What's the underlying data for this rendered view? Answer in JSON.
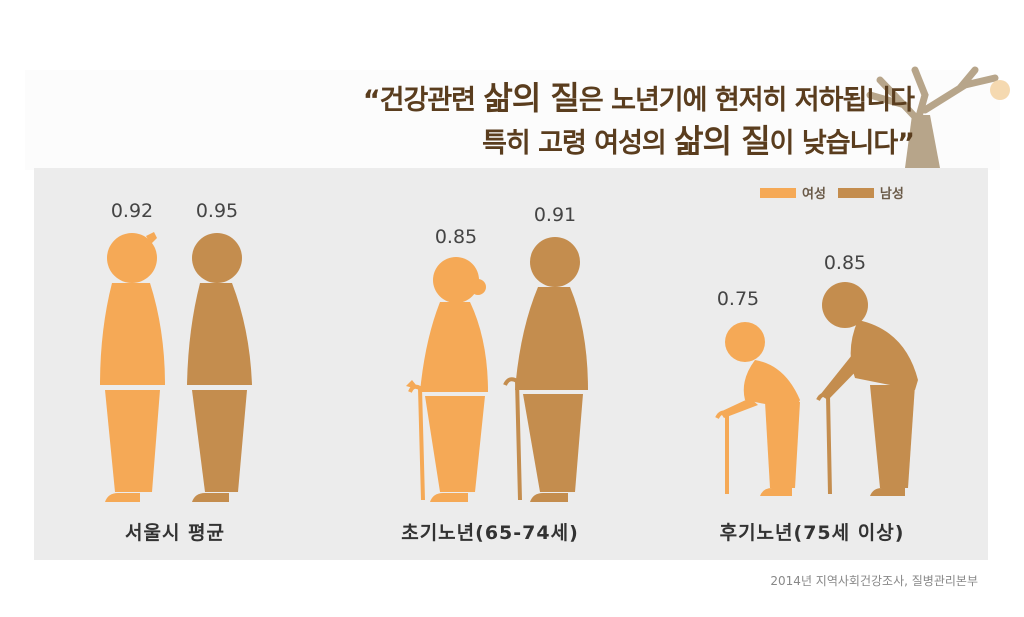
{
  "title": {
    "line1_a": "“건강관련 ",
    "line1_b": "삶의 질",
    "line1_c": "은 노년기에 현저히 저하됩니다",
    "line2_a": "특히 고령 여성의 ",
    "line2_b": "삶의 질",
    "line2_c": "이 낮습니다”"
  },
  "legend": [
    {
      "label": "여성",
      "color": "#F5A956"
    },
    {
      "label": "남성",
      "color": "#C48D4E"
    }
  ],
  "source": "2014년 지역사회건강조사, 질병관리본부",
  "chart_data": {
    "type": "bar",
    "categories": [
      "서울시 평균",
      "초기노년(65-74세)",
      "후기노년(75세 이상)"
    ],
    "series": [
      {
        "name": "여성",
        "values": [
          0.92,
          0.85,
          0.75
        ],
        "labels": [
          "0.92",
          "0.85",
          "0.75"
        ],
        "color": "#F5A956"
      },
      {
        "name": "남성",
        "values": [
          0.95,
          0.91,
          0.85
        ],
        "labels": [
          "0.95",
          "0.91",
          "0.85"
        ],
        "color": "#C48D4E"
      }
    ]
  }
}
